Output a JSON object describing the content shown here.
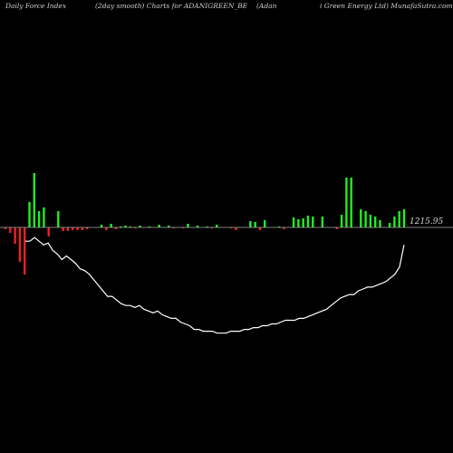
{
  "header": {
    "left": "Daily Force  Index",
    "middle": "(2day smooth) Charts for ADANIGREEN_BE",
    "right1": "(Adan",
    "right2": "i  Green  Energy Ltd) MunafaSutra.com"
  },
  "colors": {
    "background": "#000000",
    "positive": "#22ee22",
    "negative": "#ee2222",
    "line": "#ffffff",
    "zero_line": "#aaaaaa"
  },
  "chart_data": {
    "type": "bar+line",
    "zero_label": "1215.95",
    "bars": [
      -2,
      -6,
      -18,
      -38,
      -52,
      28,
      60,
      18,
      22,
      -10,
      0,
      18,
      -4,
      -4,
      -3,
      -3,
      -3,
      -2,
      0,
      0,
      3,
      -3,
      4,
      -2,
      1,
      2,
      1,
      -1,
      2,
      0,
      1,
      0,
      3,
      0,
      2,
      -1,
      0,
      -1,
      4,
      0,
      2,
      0,
      1,
      -1,
      3,
      0,
      0,
      -1,
      -3,
      0,
      0,
      7,
      6,
      -3,
      8,
      0,
      0,
      1,
      -2,
      0,
      11,
      9,
      10,
      13,
      12,
      0,
      12,
      0,
      0,
      -2,
      14,
      55,
      55,
      0,
      20,
      18,
      14,
      12,
      8,
      0,
      5,
      12,
      18,
      20
    ],
    "line": [
      62,
      62,
      64,
      62,
      60,
      61,
      57,
      55,
      52,
      54,
      52,
      50,
      47,
      46,
      44,
      41,
      38,
      35,
      32,
      32,
      30,
      28,
      27,
      27,
      26,
      27,
      25,
      24,
      23,
      24,
      22,
      21,
      20,
      20,
      18,
      17,
      16,
      14,
      14,
      13,
      13,
      13,
      12,
      12,
      12,
      13,
      13,
      13,
      14,
      14,
      15,
      15,
      16,
      16,
      17,
      17,
      18,
      19,
      19,
      19,
      20,
      20,
      21,
      22,
      23,
      24,
      25,
      27,
      29,
      31,
      32,
      33,
      33,
      35,
      36,
      37,
      37,
      38,
      39,
      40,
      42,
      44,
      48,
      60
    ],
    "line_range": [
      0,
      70
    ]
  }
}
